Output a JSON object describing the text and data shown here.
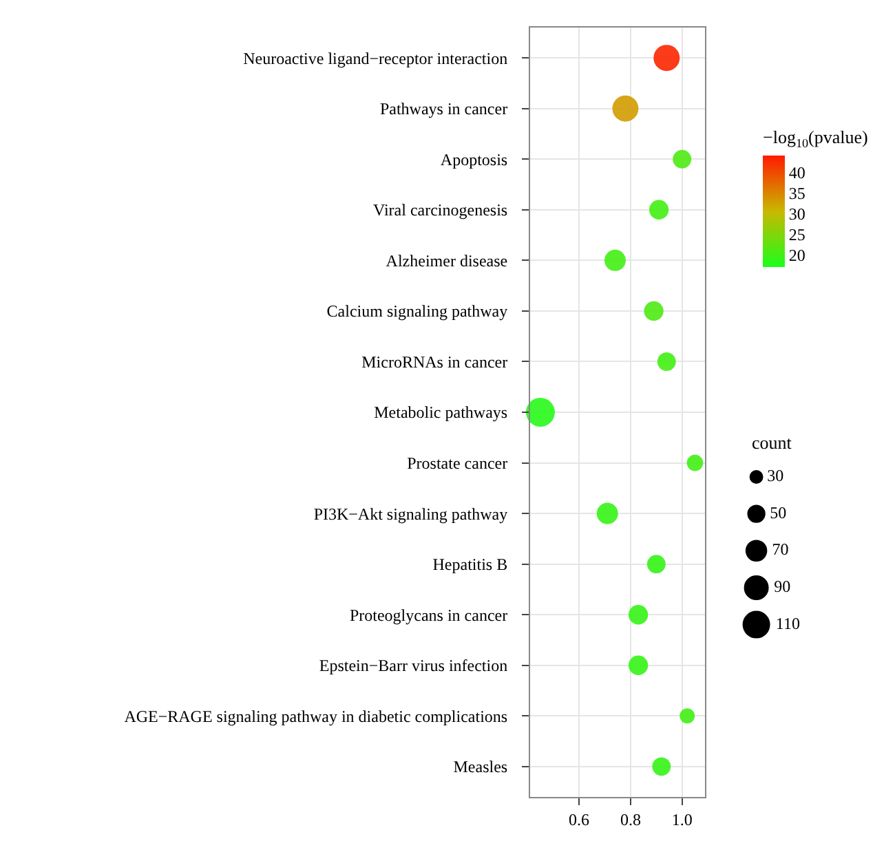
{
  "chart_data": {
    "type": "bubble",
    "orientation": "horizontal",
    "categories": [
      "Neuroactive ligand−receptor interaction",
      "Pathways in cancer",
      "Apoptosis",
      "Viral carcinogenesis",
      "Alzheimer disease",
      "Calcium signaling pathway",
      "MicroRNAs in cancer",
      "Metabolic pathways",
      "Prostate cancer",
      "PI3K−Akt signaling pathway",
      "Hepatitis B",
      "Proteoglycans in cancer",
      "Epstein−Barr virus infection",
      "AGE−RAGE signaling pathway in diabetic complications",
      "Measles"
    ],
    "values": [
      0.94,
      0.78,
      1.0,
      0.91,
      0.74,
      0.89,
      0.94,
      0.45,
      1.05,
      0.71,
      0.9,
      0.83,
      0.83,
      1.02,
      0.92
    ],
    "sizes": [
      90,
      90,
      45,
      50,
      60,
      50,
      45,
      110,
      35,
      60,
      45,
      50,
      50,
      30,
      45
    ],
    "cvalues": [
      43,
      33,
      21,
      20,
      20,
      21,
      20,
      18,
      20,
      19,
      19,
      19,
      19,
      20,
      19
    ],
    "size_legend": [
      30,
      50,
      70,
      90,
      110
    ],
    "clabel": "−log$_{10}$(pvalue)",
    "legend_title": "count",
    "clim": [
      17,
      44
    ],
    "cticks": [
      20,
      25,
      30,
      35,
      40
    ],
    "xlim": [
      0.41,
      1.09
    ],
    "xticks": [
      {
        "value": 0.6,
        "label": "0.6"
      },
      {
        "value": 0.8,
        "label": "0.8"
      },
      {
        "value": 1.0,
        "label": "1.0"
      }
    ],
    "grid": true
  }
}
